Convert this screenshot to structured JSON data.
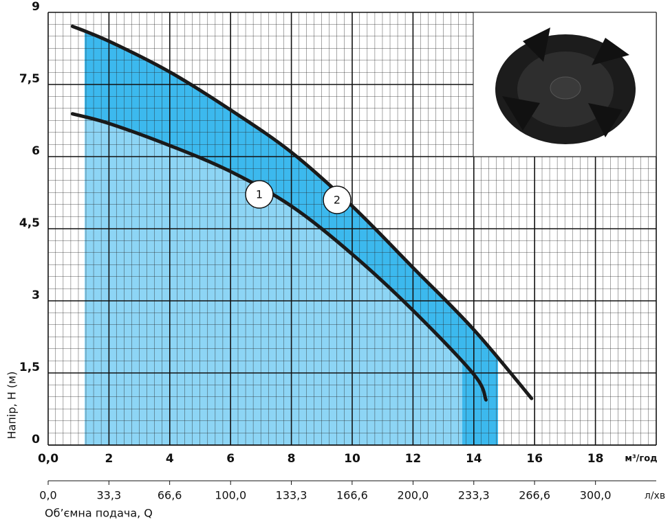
{
  "chart_data": {
    "type": "line",
    "xlabel": "Об’ємна подача, Q",
    "ylabel": "Напір, H (м)",
    "x_unit": "м³/год",
    "x2_unit": "л/хв",
    "xlim": [
      0,
      20
    ],
    "xticks": [
      {
        "value": 0,
        "label": "0,0"
      },
      2,
      4,
      6,
      8,
      10,
      12,
      14,
      16,
      18
    ],
    "x2lim": [
      0,
      333.3
    ],
    "x2ticks": [
      {
        "value": 0,
        "label": "0,0"
      },
      {
        "value": 33.3,
        "label": "33,3"
      },
      {
        "value": 66.6,
        "label": "66,6"
      },
      {
        "value": 100,
        "label": "100,0"
      },
      {
        "value": 133.3,
        "label": "133,3"
      },
      {
        "value": 166.6,
        "label": "166,6"
      },
      {
        "value": 200,
        "label": "200,0"
      },
      {
        "value": 233.3,
        "label": "233,3"
      },
      {
        "value": 266.6,
        "label": "266,6"
      },
      {
        "value": 300,
        "label": "300,0"
      }
    ],
    "ylim": [
      0,
      9
    ],
    "yticks": [
      0,
      {
        "value": 1.5,
        "label": "1,5"
      },
      3,
      {
        "value": 4.5,
        "label": "4,5"
      },
      6,
      {
        "value": 7.5,
        "label": "7,5"
      },
      9
    ],
    "grid": true,
    "series": [
      {
        "name": "1",
        "color": "#1a1a1a",
        "x": [
          0.8,
          2,
          4,
          6,
          8,
          10,
          12,
          14,
          14.4
        ],
        "values": [
          6.89,
          6.69,
          6.23,
          5.69,
          4.97,
          3.97,
          2.8,
          1.47,
          0.94
        ]
      },
      {
        "name": "2",
        "color": "#1a1a1a",
        "x": [
          0.8,
          2,
          4,
          6,
          8,
          10,
          12,
          14,
          15.9
        ],
        "values": [
          8.71,
          8.4,
          7.76,
          6.97,
          6.09,
          4.97,
          3.69,
          2.4,
          0.97
        ]
      }
    ]
  }
}
